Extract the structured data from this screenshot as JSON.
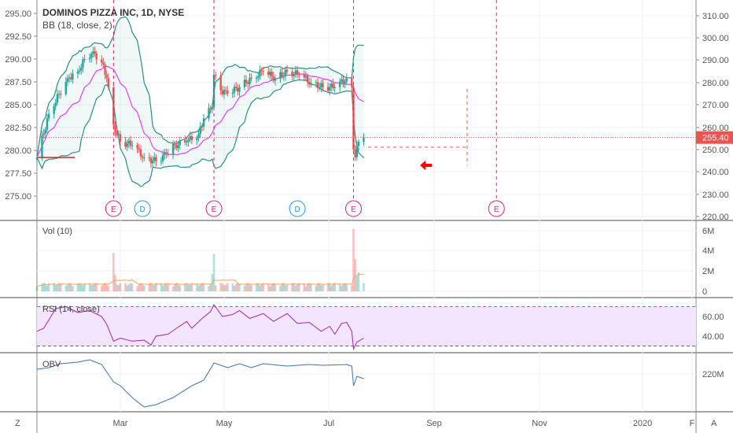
{
  "header": {
    "symbol_title": "DOMINOS PIZZA INC, 1D, NYSE",
    "bb_label": "BB (18, close, 2)",
    "vol_label": "Vol (10)",
    "rsi_label": "RSI (14, close)",
    "obv_label": "OBV"
  },
  "corner_buttons": {
    "left": "Z",
    "right": "A"
  },
  "colors": {
    "up": "#26a69a",
    "down": "#ef5350",
    "bb_band": "#2a8f80",
    "bb_basis": "#e040fb",
    "earnings": "#e91e63",
    "dividend": "#2196f3",
    "rsi_line": "#9c27b0",
    "rsi_band": "#f3e5fd",
    "obv_line": "#3f6fb0",
    "vol_ma": "#f4a460",
    "price_tag": "#ef5350"
  },
  "chart_data": [
    {
      "type": "candlestick",
      "title": "DOMINOS PIZZA INC, 1D, NYSE",
      "right_axis": {
        "ticks": [
          "310.00",
          "300.00",
          "290.00",
          "280.00",
          "270.00",
          "260.00",
          "250.00",
          "240.00",
          "230.00",
          "220.00"
        ],
        "range": [
          220,
          310
        ]
      },
      "left_axis": {
        "ticks": [
          "295.00",
          "292.50",
          "290.00",
          "287.50",
          "285.00",
          "282.50",
          "280.00",
          "277.50",
          "275.00"
        ]
      },
      "x_ticks": [
        "Mar",
        "May",
        "Jul",
        "Sep",
        "Nov",
        "2020",
        "F"
      ],
      "last_price": "255.40",
      "closes": [
        [
          "2019-01-11",
          246.5
        ],
        [
          "2019-01-18",
          266
        ],
        [
          "2019-01-24",
          275
        ],
        [
          "2019-01-29",
          282
        ],
        [
          "2019-02-04",
          285
        ],
        [
          "2019-02-08",
          290.6
        ],
        [
          "2019-02-13",
          294
        ],
        [
          "2019-02-18",
          289
        ],
        [
          "2019-02-21",
          282
        ],
        [
          "2019-02-25",
          261
        ],
        [
          "2019-03-01",
          253.5
        ],
        [
          "2019-03-08",
          252
        ],
        [
          "2019-03-15",
          246.5
        ],
        [
          "2019-03-22",
          244.7
        ],
        [
          "2019-03-28",
          248
        ],
        [
          "2019-04-02",
          252
        ],
        [
          "2019-04-09",
          253.5
        ],
        [
          "2019-04-16",
          257
        ],
        [
          "2019-04-19",
          264
        ],
        [
          "2019-04-24",
          269
        ],
        [
          "2019-04-25",
          283.5
        ],
        [
          "2019-04-29",
          276.5
        ],
        [
          "2019-05-03",
          275
        ],
        [
          "2019-05-10",
          278
        ],
        [
          "2019-05-17",
          282
        ],
        [
          "2019-05-24",
          285
        ],
        [
          "2019-05-31",
          282
        ],
        [
          "2019-06-07",
          285
        ],
        [
          "2019-06-14",
          283.5
        ],
        [
          "2019-06-21",
          280
        ],
        [
          "2019-06-28",
          278
        ],
        [
          "2019-07-05",
          278
        ],
        [
          "2019-07-12",
          282
        ],
        [
          "2019-07-15",
          278
        ],
        [
          "2019-07-16",
          250
        ],
        [
          "2019-07-17",
          246.5
        ],
        [
          "2019-07-19",
          253.5
        ],
        [
          "2019-07-22",
          255.4
        ]
      ],
      "indicators": {
        "bollinger": {
          "length": 18,
          "source": "close",
          "mult": 2
        }
      },
      "events": [
        {
          "type": "E",
          "date": "2019-02-25"
        },
        {
          "type": "D",
          "date": "2019-03-14"
        },
        {
          "type": "E",
          "date": "2019-04-25"
        },
        {
          "type": "D",
          "date": "2019-06-13"
        },
        {
          "type": "E",
          "date": "2019-07-16"
        },
        {
          "type": "E",
          "date": "2019-10-08"
        }
      ]
    },
    {
      "type": "bar",
      "title": "Vol (10)",
      "y_ticks": [
        "6M",
        "4M",
        "2M",
        "0"
      ],
      "ylim": [
        0,
        6.8
      ],
      "unit": "M",
      "typical_volume": 0.7,
      "spikes": [
        [
          "2019-02-25",
          3.8
        ],
        [
          "2019-02-26",
          1.6
        ],
        [
          "2019-04-24",
          1.7
        ],
        [
          "2019-04-25",
          3.7
        ],
        [
          "2019-07-16",
          6.2
        ],
        [
          "2019-07-17",
          3.2
        ],
        [
          "2019-07-18",
          1.5
        ],
        [
          "2019-07-19",
          1.9
        ]
      ]
    },
    {
      "type": "line",
      "title": "RSI (14, close)",
      "y_ticks": [
        "60.00",
        "40.00"
      ],
      "bands": [
        30,
        70
      ],
      "values": [
        [
          "2019-01-11",
          45
        ],
        [
          "2019-01-15",
          48
        ],
        [
          "2019-01-22",
          68
        ],
        [
          "2019-01-28",
          70
        ],
        [
          "2019-02-04",
          64
        ],
        [
          "2019-02-11",
          66
        ],
        [
          "2019-02-18",
          60
        ],
        [
          "2019-02-21",
          52
        ],
        [
          "2019-02-25",
          35
        ],
        [
          "2019-03-01",
          38
        ],
        [
          "2019-03-08",
          35
        ],
        [
          "2019-03-15",
          36
        ],
        [
          "2019-03-19",
          31
        ],
        [
          "2019-03-22",
          40
        ],
        [
          "2019-03-29",
          42
        ],
        [
          "2019-04-03",
          48
        ],
        [
          "2019-04-09",
          55
        ],
        [
          "2019-04-12",
          48
        ],
        [
          "2019-04-18",
          58
        ],
        [
          "2019-04-23",
          65
        ],
        [
          "2019-04-25",
          72
        ],
        [
          "2019-04-30",
          60
        ],
        [
          "2019-05-06",
          62
        ],
        [
          "2019-05-10",
          66
        ],
        [
          "2019-05-16",
          58
        ],
        [
          "2019-05-24",
          63
        ],
        [
          "2019-05-30",
          55
        ],
        [
          "2019-06-07",
          63
        ],
        [
          "2019-06-13",
          53
        ],
        [
          "2019-06-20",
          54
        ],
        [
          "2019-06-27",
          45
        ],
        [
          "2019-07-02",
          50
        ],
        [
          "2019-07-05",
          42
        ],
        [
          "2019-07-09",
          53
        ],
        [
          "2019-07-12",
          54
        ],
        [
          "2019-07-15",
          45
        ],
        [
          "2019-07-16",
          27
        ],
        [
          "2019-07-18",
          34
        ],
        [
          "2019-07-22",
          38
        ]
      ]
    },
    {
      "type": "line",
      "title": "OBV",
      "y_ticks": [
        "220M"
      ],
      "unit": "M",
      "values": [
        [
          "2019-01-11",
          226
        ],
        [
          "2019-01-18",
          228
        ],
        [
          "2019-01-25",
          233
        ],
        [
          "2019-02-04",
          235
        ],
        [
          "2019-02-11",
          238
        ],
        [
          "2019-02-18",
          232
        ],
        [
          "2019-02-25",
          210
        ],
        [
          "2019-03-01",
          205
        ],
        [
          "2019-03-08",
          190
        ],
        [
          "2019-03-15",
          178
        ],
        [
          "2019-03-22",
          181
        ],
        [
          "2019-04-01",
          190
        ],
        [
          "2019-04-12",
          205
        ],
        [
          "2019-04-19",
          212
        ],
        [
          "2019-04-25",
          234
        ],
        [
          "2019-05-03",
          228
        ],
        [
          "2019-05-10",
          233
        ],
        [
          "2019-05-17",
          228
        ],
        [
          "2019-05-24",
          233
        ],
        [
          "2019-06-07",
          230
        ],
        [
          "2019-06-20",
          232
        ],
        [
          "2019-06-28",
          231
        ],
        [
          "2019-07-12",
          232
        ],
        [
          "2019-07-15",
          230
        ],
        [
          "2019-07-16",
          205
        ],
        [
          "2019-07-18",
          217
        ],
        [
          "2019-07-22",
          214
        ]
      ]
    }
  ]
}
